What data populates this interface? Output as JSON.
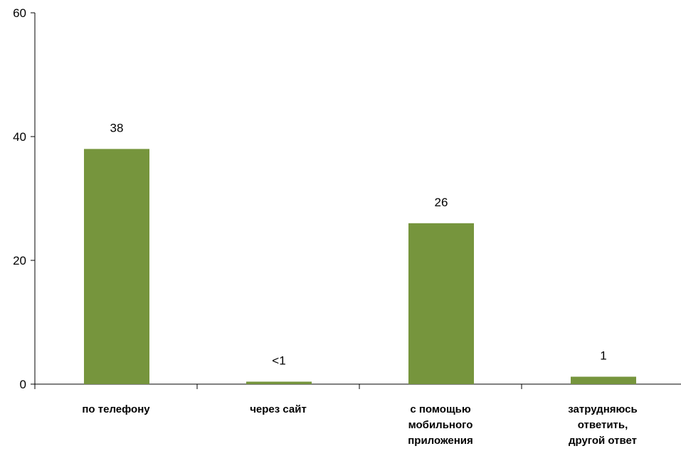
{
  "chart_data": {
    "type": "bar",
    "categories": [
      [
        "по телефону"
      ],
      [
        "через сайт"
      ],
      [
        "с помощью",
        "мобильного",
        "приложения"
      ],
      [
        "затрудняюсь",
        "ответить,",
        "другой ответ"
      ]
    ],
    "values": [
      38,
      0.4,
      26,
      1.2
    ],
    "data_labels": [
      "38",
      "<1",
      "26",
      "1"
    ],
    "ylim": [
      0,
      60
    ],
    "yticks": [
      0,
      20,
      40,
      60
    ],
    "ytick_labels": [
      "0",
      "20",
      "40",
      "60"
    ],
    "bar_color": "#76953d",
    "grid": false,
    "legend": "none",
    "title": "",
    "xlabel": "",
    "ylabel": ""
  }
}
